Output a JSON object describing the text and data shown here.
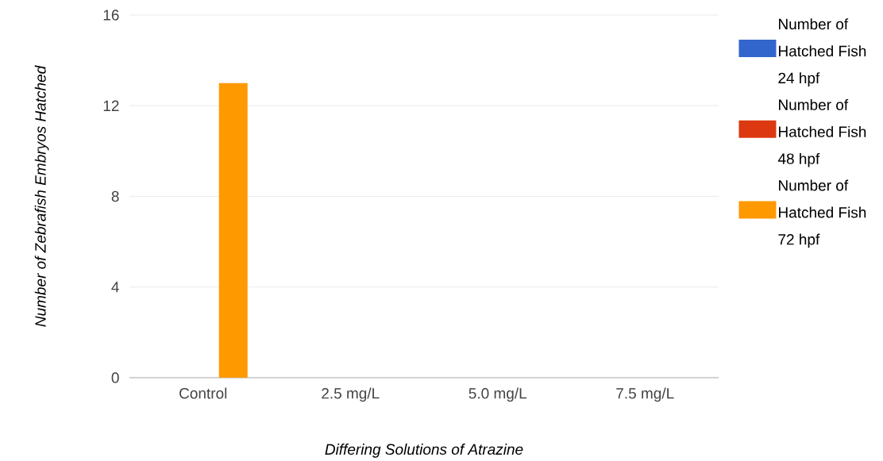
{
  "chart_data": {
    "type": "bar",
    "xlabel": "Differing Solutions of Atrazine",
    "ylabel": "Number of Zebrafish Embryos Hatched",
    "categories": [
      "Control",
      "2.5 mg/L",
      "5.0 mg/L",
      "7.5 mg/L"
    ],
    "series": [
      {
        "name": "Number of Hatched Fish 24 hpf",
        "color": "#3366cc",
        "values": [
          0,
          0,
          0,
          0
        ]
      },
      {
        "name": "Number of Hatched Fish 48 hpf",
        "color": "#dc3912",
        "values": [
          0,
          0,
          0,
          0
        ]
      },
      {
        "name": "Number of Hatched Fish 72 hpf",
        "color": "#ff9900",
        "values": [
          13,
          0,
          0,
          0
        ]
      }
    ],
    "ylim": [
      0,
      16
    ],
    "yticks": [
      0,
      4,
      8,
      12,
      16
    ],
    "grid": "y",
    "legend": "right"
  }
}
